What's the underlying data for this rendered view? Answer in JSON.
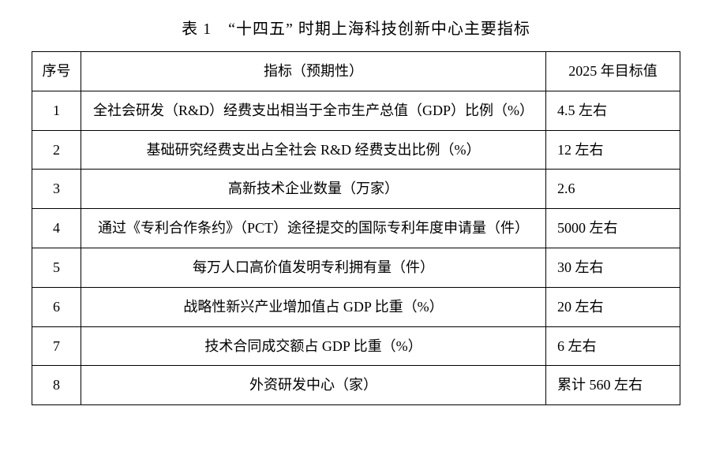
{
  "caption": "表 1　“十四五” 时期上海科技创新中心主要指标",
  "headers": {
    "num": "序号",
    "indicator": "指标（预期性）",
    "target": "2025 年目标值"
  },
  "rows": [
    {
      "num": "1",
      "indicator": "全社会研发（R&D）经费支出相当于全市生产总值（GDP）比例（%）",
      "target": "4.5 左右"
    },
    {
      "num": "2",
      "indicator": "基础研究经费支出占全社会 R&D 经费支出比例（%）",
      "target": "12 左右"
    },
    {
      "num": "3",
      "indicator": "高新技术企业数量（万家）",
      "target": "2.6"
    },
    {
      "num": "4",
      "indicator": "通过《专利合作条约》（PCT）途径提交的国际专利年度申请量（件）",
      "target": "5000 左右"
    },
    {
      "num": "5",
      "indicator": "每万人口高价值发明专利拥有量（件）",
      "target": "30 左右"
    },
    {
      "num": "6",
      "indicator": "战略性新兴产业增加值占 GDP 比重（%）",
      "target": "20 左右"
    },
    {
      "num": "7",
      "indicator": "技术合同成交额占 GDP 比重（%）",
      "target": "6 左右"
    },
    {
      "num": "8",
      "indicator": "外资研发中心（家）",
      "target": "累计 560 左右"
    }
  ]
}
